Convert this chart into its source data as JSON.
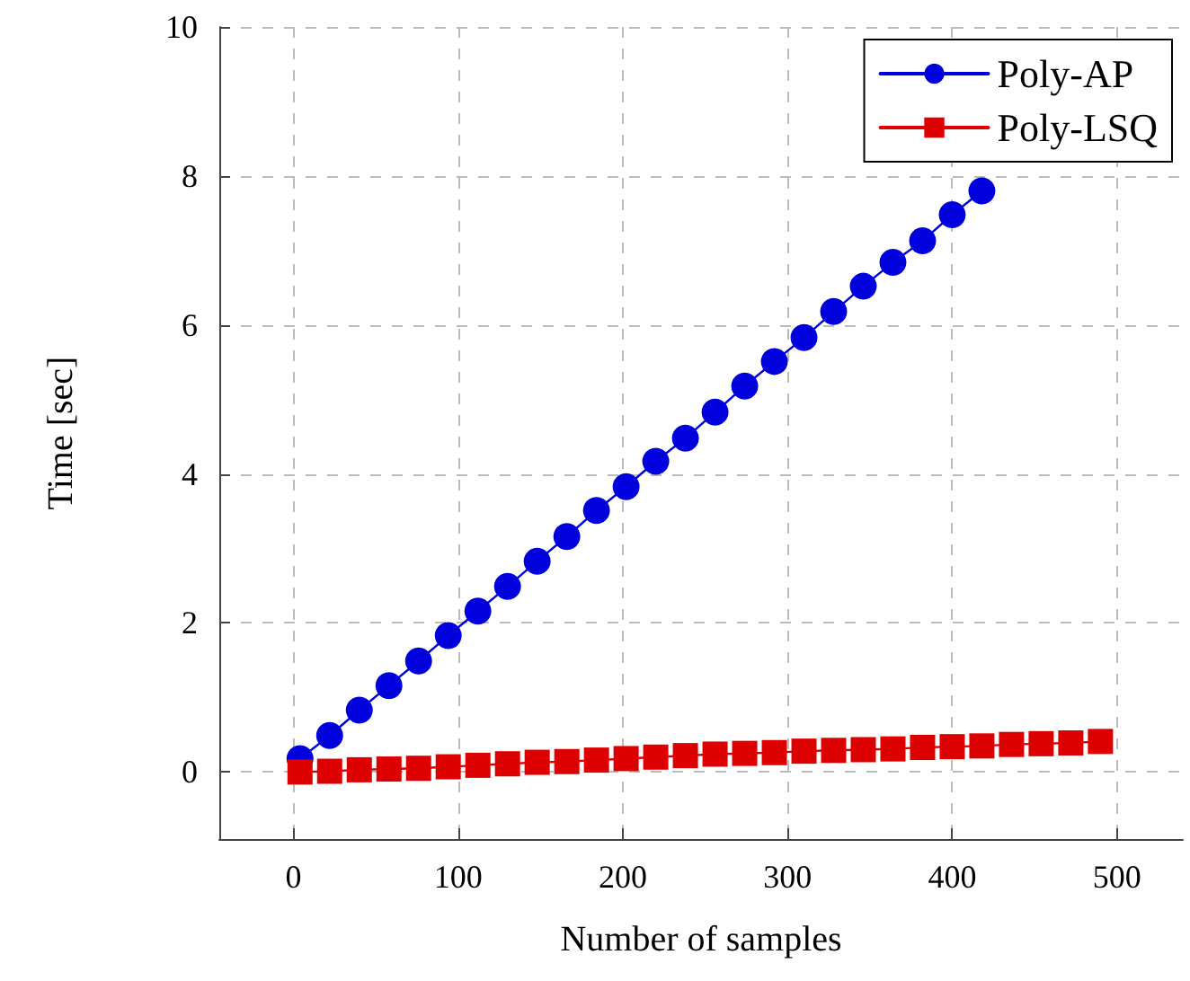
{
  "chart_data": {
    "type": "line",
    "xlabel": "Number of samples",
    "ylabel": "Time [sec]",
    "xlim": [
      -45,
      540
    ],
    "xticks": [
      0,
      100,
      200,
      300,
      400,
      500
    ],
    "ylim": [
      -0.9,
      10
    ],
    "yticks": [
      0,
      2,
      4,
      6,
      8,
      10
    ],
    "grid": true,
    "legend": "top right",
    "line_style": "solid",
    "x": [
      4,
      22,
      40,
      58,
      76,
      94,
      112,
      130,
      148,
      166,
      184,
      202,
      220,
      238,
      256,
      274,
      292,
      310,
      328,
      346,
      364,
      382,
      400,
      418,
      436,
      454,
      472,
      490
    ],
    "series": [
      {
        "name": "Poly-AP",
        "color": "#0000dd",
        "marker": "circle",
        "values": [
          0.18,
          0.49,
          0.83,
          1.16,
          1.49,
          1.83,
          2.16,
          2.49,
          2.83,
          3.16,
          3.51,
          3.83,
          4.17,
          4.48,
          4.83,
          5.18,
          5.51,
          5.83,
          6.18,
          6.52,
          6.84,
          7.13,
          7.48,
          7.8,
          null,
          null,
          null,
          null
        ]
      },
      {
        "name": "Poly-LSQ",
        "color": "#dd0000",
        "marker": "square",
        "values": [
          0,
          0.01,
          0.03,
          0.04,
          0.05,
          0.07,
          0.09,
          0.11,
          0.13,
          0.14,
          0.16,
          0.18,
          0.2,
          0.22,
          0.24,
          0.25,
          0.26,
          0.28,
          0.29,
          0.3,
          0.31,
          0.33,
          0.34,
          0.35,
          0.37,
          0.38,
          0.39,
          0.41
        ]
      }
    ]
  }
}
